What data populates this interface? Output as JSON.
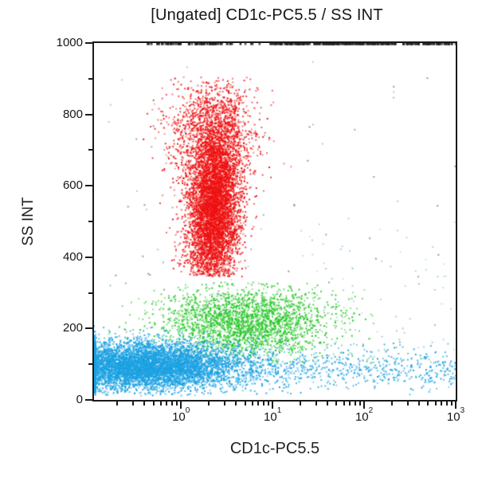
{
  "chart_data": {
    "type": "scatter",
    "title": "[Ungated] CD1c-PC5.5 / SS INT",
    "xlabel": "CD1c-PC5.5",
    "ylabel": "SS INT",
    "x_scale": "log",
    "x_decades": [
      -0.95,
      3
    ],
    "x_ticks": [
      {
        "base": "10",
        "exp": "0",
        "log": 0
      },
      {
        "base": "10",
        "exp": "1",
        "log": 1
      },
      {
        "base": "10",
        "exp": "2",
        "log": 2
      },
      {
        "base": "10",
        "exp": "3",
        "log": 3
      }
    ],
    "x_minor_mantissas": [
      2,
      3,
      4,
      5,
      6,
      7,
      8,
      9
    ],
    "ylim": [
      0,
      1000
    ],
    "y_ticks": [
      {
        "label": "0",
        "value": 0
      },
      {
        "label": "200",
        "value": 200
      },
      {
        "label": "400",
        "value": 400
      },
      {
        "label": "600",
        "value": 600
      },
      {
        "label": "800",
        "value": 800
      },
      {
        "label": "1000",
        "value": 1000
      }
    ],
    "y_minor_step": 100,
    "grid": false,
    "legend": "none",
    "colors": {
      "granulocytes": "#ee1111",
      "monocytes": "#28c828",
      "lymphocytes": "#1ba1e2",
      "saturated": "#222222",
      "axis": "#1a1a1a"
    },
    "populations": [
      {
        "name": "monocytes",
        "color": "#28c828",
        "n": 2400,
        "x_log_mean": 0.72,
        "x_log_sd": 0.46,
        "y_mean": 218,
        "y_sd": 50,
        "y_min": 105,
        "y_max": 330
      },
      {
        "name": "lymphocytes",
        "color": "#1ba1e2",
        "n": 6800,
        "x_log_mean": -0.4,
        "x_log_sd": 0.55,
        "y_mean": 95,
        "y_sd": 33,
        "y_min": 12,
        "y_max": 225,
        "clamp_left": true
      },
      {
        "name": "lymphocytes-tail",
        "color": "#1ba1e2",
        "n": 620,
        "x_uniform": [
          0.55,
          3.02
        ],
        "y_mean": 86,
        "y_sd": 30,
        "y_min": 12,
        "y_max": 190
      },
      {
        "name": "granulocytes-core",
        "color": "#ee1111",
        "n": 5200,
        "x_log_mean": 0.36,
        "x_log_sd": 0.14,
        "y_mean": 535,
        "y_sd": 115,
        "y_min": 345,
        "y_max": 900,
        "x_y_corr": 0.00018
      },
      {
        "name": "granulocytes-high",
        "color": "#ee1111",
        "n": 1400,
        "x_log_mean": 0.34,
        "x_log_sd": 0.24,
        "y_mean": 748,
        "y_sd": 85,
        "y_min": 345,
        "y_max": 905,
        "x_y_corr": 0.00018
      },
      {
        "name": "saturated-events-left",
        "color": "#222222",
        "n": 70,
        "x_log_mean": 0.15,
        "x_log_sd": 0.28,
        "y_const": 1000
      },
      {
        "name": "saturated-events-right",
        "color": "#222222",
        "n": 240,
        "x_uniform": [
          0.95,
          3.0
        ],
        "y_const": 1000
      },
      {
        "name": "noise-specks-gray",
        "color": "#8c9196",
        "n": 70,
        "x_uniform": [
          -0.9,
          3.0
        ],
        "y_uniform": [
          140,
          980
        ]
      },
      {
        "name": "noise-specks-green",
        "color": "#7fd67f",
        "n": 45,
        "x_uniform": [
          1.3,
          3.0
        ],
        "y_uniform": [
          100,
          380
        ]
      },
      {
        "name": "noise-specks-blue",
        "color": "#9ec9e8",
        "n": 55,
        "x_uniform": [
          0.3,
          3.0
        ],
        "y_uniform": [
          130,
          520
        ]
      }
    ]
  }
}
